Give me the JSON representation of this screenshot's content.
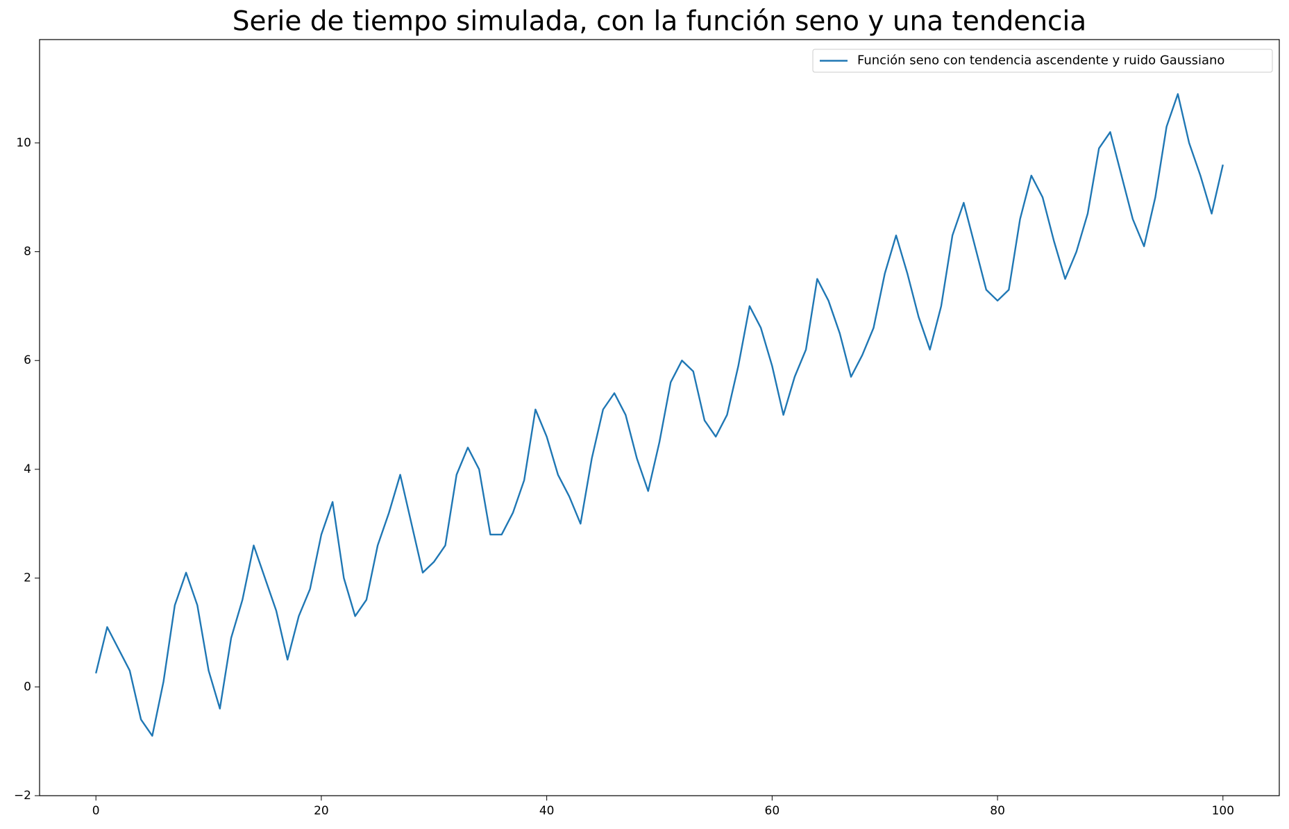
{
  "chart_data": {
    "type": "line",
    "title": "Serie de tiempo simulada, con la función seno y una tendencia",
    "x": [
      0,
      1,
      2,
      3,
      4,
      5,
      6,
      7,
      8,
      9,
      10,
      11,
      12,
      13,
      14,
      15,
      16,
      17,
      18,
      19,
      20,
      21,
      22,
      23,
      24,
      25,
      26,
      27,
      28,
      29,
      30,
      31,
      32,
      33,
      34,
      35,
      36,
      37,
      38,
      39,
      40,
      41,
      42,
      43,
      44,
      45,
      46,
      47,
      48,
      49,
      50,
      51,
      52,
      53,
      54,
      55,
      56,
      57,
      58,
      59,
      60,
      61,
      62,
      63,
      64,
      65,
      66,
      67,
      68,
      69,
      70,
      71,
      72,
      73,
      74,
      75,
      76,
      77,
      78,
      79,
      80,
      81,
      82,
      83,
      84,
      85,
      86,
      87,
      88,
      89,
      90,
      91,
      92,
      93,
      94,
      95,
      96,
      97,
      98,
      99,
      100
    ],
    "series": [
      {
        "name": "Función seno con tendencia ascendente y ruido Gaussiano",
        "color": "#1f77b4",
        "values": [
          0.25,
          1.1,
          0.7,
          0.3,
          -0.6,
          -0.9,
          0.1,
          1.5,
          2.1,
          1.5,
          0.3,
          -0.4,
          0.9,
          1.6,
          2.6,
          2.0,
          1.4,
          0.5,
          1.3,
          1.8,
          2.8,
          3.4,
          2.0,
          1.3,
          1.6,
          2.6,
          3.2,
          3.9,
          3.0,
          2.1,
          2.3,
          2.6,
          3.9,
          4.4,
          4.0,
          2.8,
          2.8,
          3.2,
          3.8,
          5.1,
          4.6,
          3.9,
          3.5,
          3.0,
          4.2,
          5.1,
          5.4,
          5.0,
          4.2,
          3.6,
          4.5,
          5.6,
          6.0,
          5.8,
          4.9,
          4.6,
          5.0,
          5.9,
          7.0,
          6.6,
          5.9,
          5.0,
          5.7,
          6.2,
          7.5,
          7.1,
          6.5,
          5.7,
          6.1,
          6.6,
          7.6,
          8.3,
          7.6,
          6.8,
          6.2,
          7.0,
          8.3,
          8.9,
          8.1,
          7.3,
          7.1,
          7.3,
          8.6,
          9.4,
          9.0,
          8.2,
          7.5,
          8.0,
          8.7,
          9.9,
          10.2,
          9.4,
          8.6,
          8.1,
          9.0,
          10.3,
          10.9,
          10.0,
          9.4,
          8.7,
          9.6
        ]
      }
    ],
    "xlim": [
      -5,
      105
    ],
    "ylim": [
      -2.0,
      11.9
    ],
    "xticks": [
      0,
      20,
      40,
      60,
      80,
      100
    ],
    "yticks": [
      {
        "value": -2,
        "label": "−2"
      },
      0,
      2,
      4,
      6,
      8,
      10
    ],
    "legend": "upper right",
    "grid": false
  }
}
